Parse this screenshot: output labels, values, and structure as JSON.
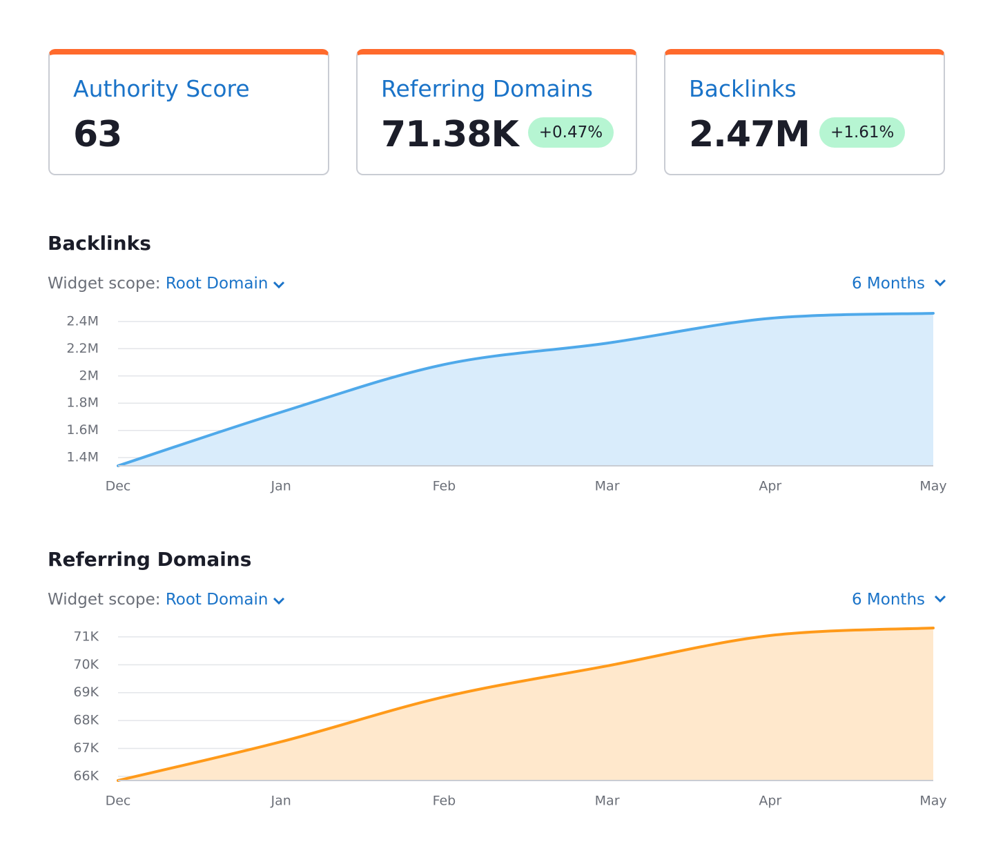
{
  "cards": [
    {
      "title": "Authority Score",
      "value": "63"
    },
    {
      "title": "Referring Domains",
      "value": "71.38K",
      "change": "+0.47%"
    },
    {
      "title": "Backlinks",
      "value": "2.47M",
      "change": "+1.61%"
    }
  ],
  "chart_data": [
    {
      "type": "area",
      "title": "Backlinks",
      "scope_label": "Widget scope:",
      "scope_value": "Root Domain",
      "period": "6 Months",
      "categories": [
        "Dec",
        "Jan",
        "Feb",
        "Mar",
        "Apr",
        "May"
      ],
      "series": [
        {
          "name": "Backlinks",
          "color": "#4fa9ea",
          "fill": "#d9ecfb",
          "values": [
            1340000,
            1734000,
            2084000,
            2241000,
            2423000,
            2460000
          ]
        }
      ],
      "ylim": [
        1340000,
        2460000
      ],
      "yticks": [
        {
          "value": 1400000,
          "label": "1.4M"
        },
        {
          "value": 1600000,
          "label": "1.6M"
        },
        {
          "value": 1800000,
          "label": "1.8M"
        },
        {
          "value": 2000000,
          "label": "2M"
        },
        {
          "value": 2200000,
          "label": "2.2M"
        },
        {
          "value": 2400000,
          "label": "2.4M"
        }
      ],
      "grid": true
    },
    {
      "type": "area",
      "title": "Referring Domains",
      "scope_label": "Widget scope:",
      "scope_value": "Root Domain",
      "period": "6 Months",
      "categories": [
        "Dec",
        "Jan",
        "Feb",
        "Mar",
        "Apr",
        "May"
      ],
      "series": [
        {
          "name": "Referring Domains",
          "color": "#ff9a1a",
          "fill": "#ffe8cc",
          "values": [
            65850,
            67240,
            68850,
            69960,
            71050,
            71320
          ]
        }
      ],
      "ylim": [
        65850,
        71320
      ],
      "yticks": [
        {
          "value": 66000,
          "label": "66K"
        },
        {
          "value": 67000,
          "label": "67K"
        },
        {
          "value": 68000,
          "label": "68K"
        },
        {
          "value": 69000,
          "label": "69K"
        },
        {
          "value": 70000,
          "label": "70K"
        },
        {
          "value": 71000,
          "label": "71K"
        }
      ],
      "grid": true
    }
  ]
}
